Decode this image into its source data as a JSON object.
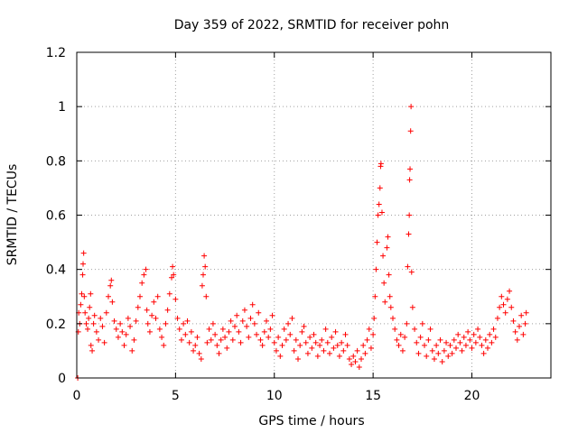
{
  "chart_data": {
    "type": "scatter",
    "title": "Day 359 of 2022, SRMTID for receiver pohn",
    "xlabel": "GPS time / hours",
    "ylabel": "SRMTID / TECUs",
    "xlim": [
      0,
      24
    ],
    "ylim": [
      0,
      1.2
    ],
    "x_ticks": [
      0,
      5,
      10,
      15,
      20
    ],
    "x_tick_labels": [
      "0",
      "5",
      "10",
      "15",
      "20"
    ],
    "y_ticks": [
      0,
      0.2,
      0.4,
      0.6,
      0.8,
      1.0,
      1.2
    ],
    "y_tick_labels": [
      "0",
      "0.2",
      "0.4",
      "0.6",
      "0.8",
      "1",
      "1.2"
    ],
    "grid": true,
    "marker": "+",
    "color": "#ff0000",
    "series": [
      {
        "name": "SRMTID",
        "points": [
          [
            0.05,
            0.0
          ],
          [
            0.08,
            0.17
          ],
          [
            0.1,
            0.24
          ],
          [
            0.15,
            0.2
          ],
          [
            0.2,
            0.27
          ],
          [
            0.25,
            0.31
          ],
          [
            0.3,
            0.38
          ],
          [
            0.32,
            0.42
          ],
          [
            0.35,
            0.46
          ],
          [
            0.38,
            0.3
          ],
          [
            0.42,
            0.24
          ],
          [
            0.48,
            0.2
          ],
          [
            0.55,
            0.18
          ],
          [
            0.6,
            0.22
          ],
          [
            0.65,
            0.26
          ],
          [
            0.7,
            0.31
          ],
          [
            0.72,
            0.12
          ],
          [
            0.78,
            0.1
          ],
          [
            0.85,
            0.2
          ],
          [
            0.9,
            0.23
          ],
          [
            1.0,
            0.17
          ],
          [
            1.1,
            0.14
          ],
          [
            1.2,
            0.22
          ],
          [
            1.3,
            0.19
          ],
          [
            1.4,
            0.13
          ],
          [
            1.5,
            0.24
          ],
          [
            1.6,
            0.3
          ],
          [
            1.7,
            0.34
          ],
          [
            1.75,
            0.36
          ],
          [
            1.8,
            0.28
          ],
          [
            1.9,
            0.21
          ],
          [
            2.0,
            0.18
          ],
          [
            2.1,
            0.15
          ],
          [
            2.2,
            0.2
          ],
          [
            2.3,
            0.17
          ],
          [
            2.4,
            0.12
          ],
          [
            2.5,
            0.16
          ],
          [
            2.6,
            0.22
          ],
          [
            2.7,
            0.19
          ],
          [
            2.8,
            0.1
          ],
          [
            2.9,
            0.14
          ],
          [
            3.0,
            0.21
          ],
          [
            3.1,
            0.26
          ],
          [
            3.2,
            0.3
          ],
          [
            3.3,
            0.35
          ],
          [
            3.4,
            0.38
          ],
          [
            3.5,
            0.4
          ],
          [
            3.55,
            0.25
          ],
          [
            3.6,
            0.2
          ],
          [
            3.7,
            0.17
          ],
          [
            3.8,
            0.23
          ],
          [
            3.9,
            0.28
          ],
          [
            4.0,
            0.22
          ],
          [
            4.1,
            0.3
          ],
          [
            4.2,
            0.18
          ],
          [
            4.3,
            0.15
          ],
          [
            4.4,
            0.12
          ],
          [
            4.5,
            0.2
          ],
          [
            4.6,
            0.25
          ],
          [
            4.7,
            0.31
          ],
          [
            4.8,
            0.37
          ],
          [
            4.85,
            0.41
          ],
          [
            4.9,
            0.38
          ],
          [
            5.0,
            0.29
          ],
          [
            5.1,
            0.22
          ],
          [
            5.2,
            0.18
          ],
          [
            5.3,
            0.14
          ],
          [
            5.4,
            0.2
          ],
          [
            5.5,
            0.16
          ],
          [
            5.6,
            0.21
          ],
          [
            5.7,
            0.13
          ],
          [
            5.8,
            0.17
          ],
          [
            5.9,
            0.1
          ],
          [
            6.0,
            0.12
          ],
          [
            6.1,
            0.15
          ],
          [
            6.2,
            0.09
          ],
          [
            6.3,
            0.07
          ],
          [
            6.35,
            0.34
          ],
          [
            6.4,
            0.38
          ],
          [
            6.45,
            0.45
          ],
          [
            6.5,
            0.41
          ],
          [
            6.55,
            0.3
          ],
          [
            6.6,
            0.13
          ],
          [
            6.7,
            0.18
          ],
          [
            6.8,
            0.14
          ],
          [
            6.9,
            0.2
          ],
          [
            7.0,
            0.16
          ],
          [
            7.1,
            0.12
          ],
          [
            7.2,
            0.09
          ],
          [
            7.3,
            0.14
          ],
          [
            7.4,
            0.18
          ],
          [
            7.5,
            0.15
          ],
          [
            7.6,
            0.11
          ],
          [
            7.7,
            0.17
          ],
          [
            7.8,
            0.21
          ],
          [
            7.9,
            0.14
          ],
          [
            8.0,
            0.19
          ],
          [
            8.1,
            0.23
          ],
          [
            8.2,
            0.17
          ],
          [
            8.3,
            0.13
          ],
          [
            8.4,
            0.21
          ],
          [
            8.5,
            0.25
          ],
          [
            8.6,
            0.19
          ],
          [
            8.7,
            0.15
          ],
          [
            8.8,
            0.22
          ],
          [
            8.9,
            0.27
          ],
          [
            9.0,
            0.2
          ],
          [
            9.1,
            0.16
          ],
          [
            9.2,
            0.24
          ],
          [
            9.3,
            0.14
          ],
          [
            9.4,
            0.12
          ],
          [
            9.5,
            0.17
          ],
          [
            9.6,
            0.21
          ],
          [
            9.7,
            0.15
          ],
          [
            9.8,
            0.18
          ],
          [
            9.9,
            0.23
          ],
          [
            10.0,
            0.13
          ],
          [
            10.1,
            0.1
          ],
          [
            10.2,
            0.15
          ],
          [
            10.3,
            0.08
          ],
          [
            10.4,
            0.12
          ],
          [
            10.5,
            0.18
          ],
          [
            10.6,
            0.14
          ],
          [
            10.7,
            0.2
          ],
          [
            10.8,
            0.16
          ],
          [
            10.9,
            0.22
          ],
          [
            11.0,
            0.1
          ],
          [
            11.1,
            0.14
          ],
          [
            11.2,
            0.07
          ],
          [
            11.3,
            0.12
          ],
          [
            11.4,
            0.17
          ],
          [
            11.5,
            0.19
          ],
          [
            11.6,
            0.13
          ],
          [
            11.7,
            0.09
          ],
          [
            11.8,
            0.15
          ],
          [
            11.9,
            0.11
          ],
          [
            12.0,
            0.16
          ],
          [
            12.1,
            0.13
          ],
          [
            12.2,
            0.08
          ],
          [
            12.3,
            0.12
          ],
          [
            12.4,
            0.14
          ],
          [
            12.5,
            0.1
          ],
          [
            12.6,
            0.18
          ],
          [
            12.7,
            0.13
          ],
          [
            12.8,
            0.09
          ],
          [
            12.9,
            0.15
          ],
          [
            13.0,
            0.11
          ],
          [
            13.1,
            0.17
          ],
          [
            13.2,
            0.12
          ],
          [
            13.3,
            0.08
          ],
          [
            13.4,
            0.13
          ],
          [
            13.5,
            0.1
          ],
          [
            13.6,
            0.16
          ],
          [
            13.7,
            0.12
          ],
          [
            13.8,
            0.07
          ],
          [
            13.9,
            0.05
          ],
          [
            14.0,
            0.08
          ],
          [
            14.1,
            0.06
          ],
          [
            14.2,
            0.1
          ],
          [
            14.3,
            0.04
          ],
          [
            14.4,
            0.07
          ],
          [
            14.5,
            0.12
          ],
          [
            14.6,
            0.09
          ],
          [
            14.7,
            0.14
          ],
          [
            14.8,
            0.18
          ],
          [
            14.9,
            0.11
          ],
          [
            15.0,
            0.16
          ],
          [
            15.05,
            0.22
          ],
          [
            15.1,
            0.3
          ],
          [
            15.15,
            0.4
          ],
          [
            15.2,
            0.5
          ],
          [
            15.25,
            0.6
          ],
          [
            15.3,
            0.64
          ],
          [
            15.35,
            0.7
          ],
          [
            15.38,
            0.78
          ],
          [
            15.4,
            0.79
          ],
          [
            15.45,
            0.61
          ],
          [
            15.5,
            0.45
          ],
          [
            15.55,
            0.35
          ],
          [
            15.6,
            0.28
          ],
          [
            15.7,
            0.48
          ],
          [
            15.75,
            0.52
          ],
          [
            15.8,
            0.38
          ],
          [
            15.85,
            0.3
          ],
          [
            15.9,
            0.26
          ],
          [
            16.0,
            0.22
          ],
          [
            16.1,
            0.18
          ],
          [
            16.2,
            0.14
          ],
          [
            16.3,
            0.12
          ],
          [
            16.4,
            0.16
          ],
          [
            16.5,
            0.1
          ],
          [
            16.6,
            0.15
          ],
          [
            16.7,
            0.2
          ],
          [
            16.75,
            0.41
          ],
          [
            16.8,
            0.53
          ],
          [
            16.83,
            0.6
          ],
          [
            16.85,
            0.73
          ],
          [
            16.87,
            0.77
          ],
          [
            16.9,
            0.91
          ],
          [
            16.92,
            1.0
          ],
          [
            16.95,
            0.39
          ],
          [
            17.0,
            0.26
          ],
          [
            17.1,
            0.18
          ],
          [
            17.2,
            0.13
          ],
          [
            17.3,
            0.09
          ],
          [
            17.4,
            0.15
          ],
          [
            17.5,
            0.2
          ],
          [
            17.6,
            0.12
          ],
          [
            17.7,
            0.08
          ],
          [
            17.8,
            0.14
          ],
          [
            17.9,
            0.18
          ],
          [
            18.0,
            0.1
          ],
          [
            18.1,
            0.07
          ],
          [
            18.2,
            0.12
          ],
          [
            18.3,
            0.09
          ],
          [
            18.4,
            0.14
          ],
          [
            18.5,
            0.06
          ],
          [
            18.6,
            0.1
          ],
          [
            18.7,
            0.13
          ],
          [
            18.8,
            0.08
          ],
          [
            18.9,
            0.12
          ],
          [
            19.0,
            0.09
          ],
          [
            19.1,
            0.14
          ],
          [
            19.2,
            0.11
          ],
          [
            19.3,
            0.16
          ],
          [
            19.4,
            0.13
          ],
          [
            19.5,
            0.1
          ],
          [
            19.6,
            0.15
          ],
          [
            19.7,
            0.12
          ],
          [
            19.8,
            0.17
          ],
          [
            19.9,
            0.14
          ],
          [
            20.0,
            0.11
          ],
          [
            20.1,
            0.16
          ],
          [
            20.2,
            0.13
          ],
          [
            20.3,
            0.18
          ],
          [
            20.4,
            0.15
          ],
          [
            20.5,
            0.12
          ],
          [
            20.6,
            0.09
          ],
          [
            20.7,
            0.14
          ],
          [
            20.8,
            0.11
          ],
          [
            20.9,
            0.16
          ],
          [
            21.0,
            0.13
          ],
          [
            21.1,
            0.18
          ],
          [
            21.2,
            0.15
          ],
          [
            21.3,
            0.22
          ],
          [
            21.4,
            0.26
          ],
          [
            21.5,
            0.3
          ],
          [
            21.6,
            0.27
          ],
          [
            21.7,
            0.24
          ],
          [
            21.8,
            0.29
          ],
          [
            21.9,
            0.32
          ],
          [
            22.0,
            0.26
          ],
          [
            22.1,
            0.21
          ],
          [
            22.2,
            0.17
          ],
          [
            22.3,
            0.14
          ],
          [
            22.4,
            0.19
          ],
          [
            22.5,
            0.23
          ],
          [
            22.6,
            0.16
          ],
          [
            22.7,
            0.2
          ],
          [
            22.75,
            0.24
          ]
        ]
      }
    ]
  }
}
